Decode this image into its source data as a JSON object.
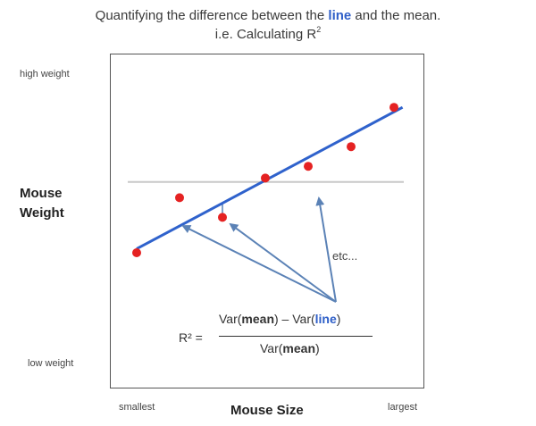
{
  "title": {
    "line1_pre": "Quantifying the difference between the ",
    "line1_blue": "line",
    "line1_post": " and the mean.",
    "line2_pre": "i.e. Calculating R",
    "line2_sup": "2"
  },
  "y_axis": {
    "label_line1": "Mouse",
    "label_line2": "Weight",
    "high": "high weight",
    "low": "low weight"
  },
  "x_axis": {
    "label": "Mouse Size",
    "small": "smallest",
    "large": "largest"
  },
  "annotation": {
    "etc": "etc..."
  },
  "formula": {
    "lhs": "R² =",
    "num_a": "Var(",
    "num_b": "mean",
    "num_c": ") – Var(",
    "num_d": "line",
    "num_e": ")",
    "den_a": "Var(",
    "den_b": "mean",
    "den_c": ")"
  },
  "chart_data": {
    "type": "scatter",
    "points": [
      {
        "x": 1.0,
        "y": 2.2
      },
      {
        "x": 2.0,
        "y": 3.6
      },
      {
        "x": 3.0,
        "y": 3.1
      },
      {
        "x": 4.0,
        "y": 4.1
      },
      {
        "x": 5.0,
        "y": 4.4
      },
      {
        "x": 6.0,
        "y": 4.9
      },
      {
        "x": 7.0,
        "y": 5.9
      }
    ],
    "fit_line": {
      "x": [
        1.0,
        7.2
      ],
      "y": [
        2.3,
        5.9
      ]
    },
    "mean_y": 4.0,
    "residuals_shown": [
      2,
      3
    ],
    "colors": {
      "points": "#e52222",
      "fit_line": "#2f62cc",
      "mean_line": "#c8c8c8",
      "arrows": "#5b82b6",
      "emphasis": "#2f5fc8"
    }
  }
}
